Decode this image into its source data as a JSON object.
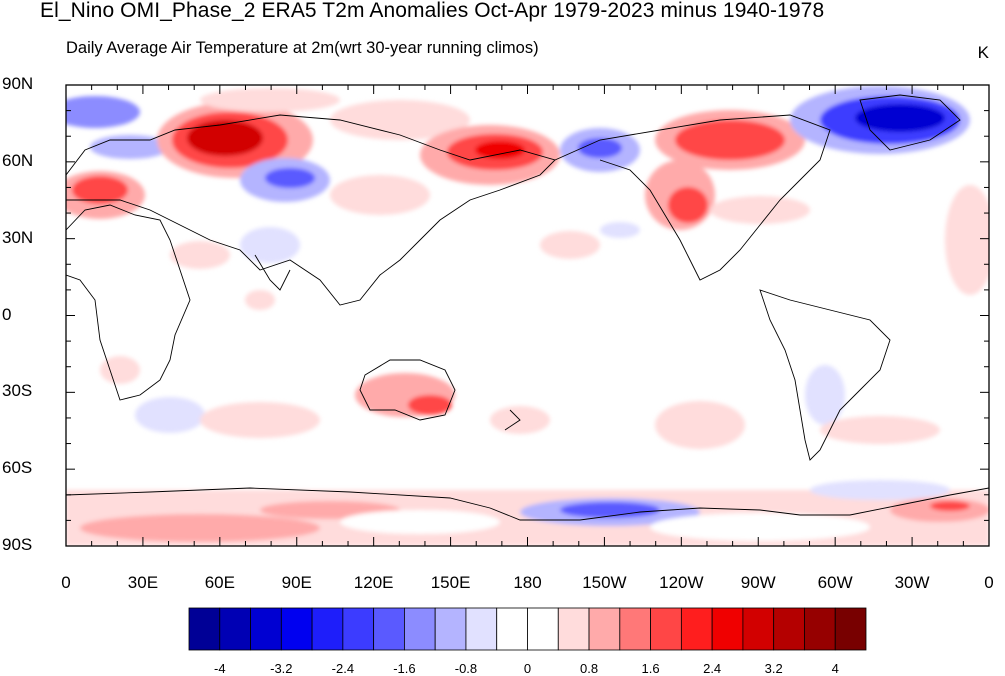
{
  "title": "El_Nino OMI_Phase_2 ERA5 T2m Anomalies Oct-Apr 1979-2023 minus 1940-1978",
  "subtitle_left": "Daily Average Air Temperature at 2m",
  "subtitle_right": "(wrt 30-year running climos)",
  "units": "K",
  "lat_labels": [
    "90N",
    "60N",
    "30N",
    "0",
    "30S",
    "60S",
    "90S"
  ],
  "lon_labels": [
    "0",
    "30E",
    "60E",
    "90E",
    "120E",
    "150E",
    "180",
    "150W",
    "120W",
    "90W",
    "60W",
    "30W",
    "0"
  ],
  "colorbar": {
    "labels": [
      "-4",
      "-3.2",
      "-2.4",
      "-1.6",
      "-0.8",
      "0",
      "0.8",
      "1.6",
      "2.4",
      "3.2",
      "4"
    ],
    "colors": [
      "#000096",
      "#0000b4",
      "#0000d2",
      "#0000f0",
      "#1e1efa",
      "#3c3cff",
      "#5a5aff",
      "#8c8cff",
      "#b4b4ff",
      "#e1e1ff",
      "#ffffff",
      "#ffffff",
      "#ffdcdc",
      "#ffaaaa",
      "#ff7878",
      "#ff4646",
      "#ff1e1e",
      "#f00000",
      "#d20000",
      "#b40000",
      "#960000",
      "#780000"
    ]
  }
}
